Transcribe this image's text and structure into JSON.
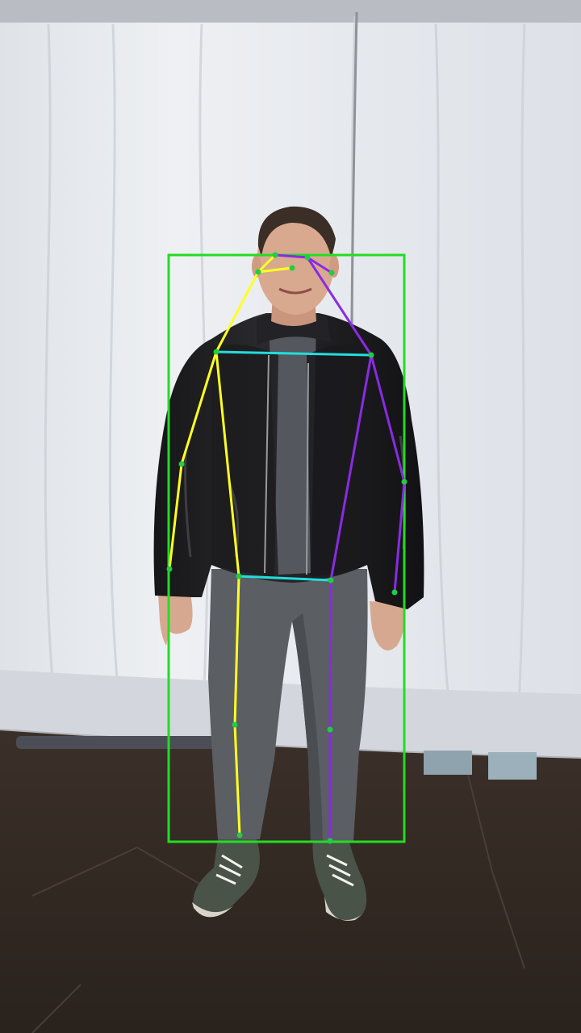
{
  "image": {
    "subject": "person-standing",
    "backdrop_color": "#e9ecf0",
    "floor_color": "#3a3029"
  },
  "pose_overlay": {
    "detection_box_color": "#22dd22",
    "colors": {
      "right_side": "#ffff22",
      "left_side": "#8a2be2",
      "cross_links": "#22dddd",
      "keypoint": "#22cc44"
    },
    "keypoint_names": [
      "nose",
      "left_eye",
      "right_eye",
      "left_ear",
      "right_ear",
      "left_shoulder",
      "right_shoulder",
      "left_elbow",
      "right_elbow",
      "left_wrist",
      "right_wrist",
      "left_hip",
      "right_hip",
      "left_knee",
      "right_knee",
      "left_ankle",
      "right_ankle"
    ],
    "limbs": [
      {
        "from": "nose",
        "to": "left_eye",
        "side": "left_side"
      },
      {
        "from": "nose",
        "to": "right_eye",
        "side": "right_side"
      },
      {
        "from": "left_eye",
        "to": "left_ear",
        "side": "left_side"
      },
      {
        "from": "right_eye",
        "to": "right_ear",
        "side": "right_side"
      },
      {
        "from": "left_eye",
        "to": "left_shoulder",
        "side": "left_side"
      },
      {
        "from": "right_eye",
        "to": "right_shoulder",
        "side": "right_side"
      },
      {
        "from": "left_shoulder",
        "to": "right_shoulder",
        "side": "cross_links"
      },
      {
        "from": "left_shoulder",
        "to": "left_elbow",
        "side": "left_side"
      },
      {
        "from": "left_elbow",
        "to": "left_wrist",
        "side": "left_side"
      },
      {
        "from": "right_shoulder",
        "to": "right_elbow",
        "side": "right_side"
      },
      {
        "from": "right_elbow",
        "to": "right_wrist",
        "side": "right_side"
      },
      {
        "from": "left_shoulder",
        "to": "left_hip",
        "side": "left_side"
      },
      {
        "from": "right_shoulder",
        "to": "right_hip",
        "side": "right_side"
      },
      {
        "from": "left_hip",
        "to": "right_hip",
        "side": "cross_links"
      },
      {
        "from": "left_hip",
        "to": "left_knee",
        "side": "left_side"
      },
      {
        "from": "left_knee",
        "to": "left_ankle",
        "side": "left_side"
      },
      {
        "from": "right_hip",
        "to": "right_knee",
        "side": "right_side"
      },
      {
        "from": "right_knee",
        "to": "right_ankle",
        "side": "right_side"
      }
    ]
  }
}
